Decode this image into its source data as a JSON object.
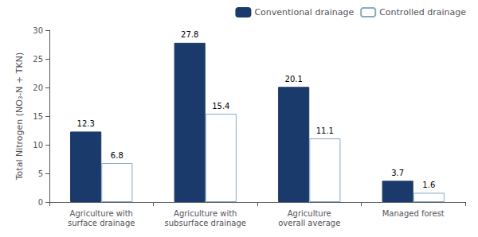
{
  "chart_data": {
    "type": "bar",
    "categories": [
      "Agriculture with\nsurface drainage",
      "Agriculture with\nsubsurface drainage",
      "Agriculture\noverall average",
      "Managed forest"
    ],
    "series": [
      {
        "name": "Conventional drainage",
        "color": "#1a3a6b",
        "values": [
          12.3,
          27.8,
          20.1,
          3.7
        ]
      },
      {
        "name": "Controlled drainage",
        "color": "#ffffff",
        "values": [
          6.8,
          15.4,
          11.1,
          1.6
        ]
      }
    ],
    "ylabel": "Total Nitrogen (NO₃-N + TKN)",
    "ylim": [
      0,
      30
    ],
    "yticks": [
      0,
      5,
      10,
      15,
      20,
      25,
      30
    ],
    "grid": false,
    "legend": "upper right",
    "data_labels": true
  }
}
